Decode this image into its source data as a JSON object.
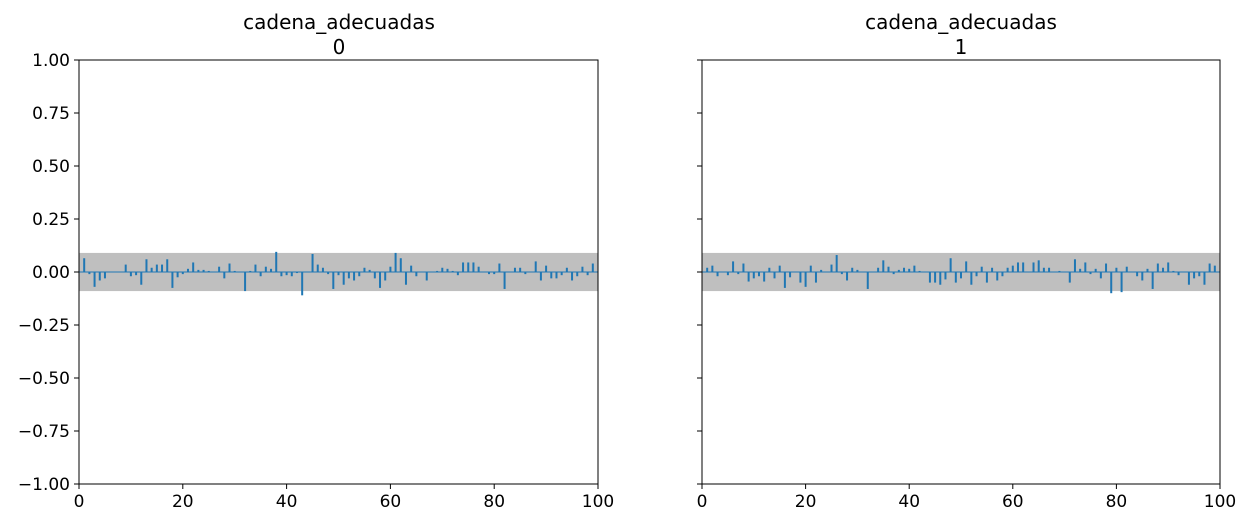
{
  "chart_data": [
    {
      "type": "bar",
      "title": "cadena_adecuadas",
      "subtitle": "0",
      "xlabel": "",
      "ylabel": "",
      "xlim": [
        0,
        100
      ],
      "ylim": [
        -1.0,
        1.0
      ],
      "xticks": [
        "0",
        "20",
        "40",
        "60",
        "80",
        "100"
      ],
      "yticks": [
        "1.00",
        "0.75",
        "0.50",
        "0.25",
        "0.00",
        "−0.25",
        "−0.50",
        "−0.75",
        "−1.00"
      ],
      "confidence_band": [
        -0.09,
        0.09
      ],
      "grid": false,
      "x": [
        1,
        2,
        3,
        4,
        5,
        6,
        7,
        8,
        9,
        10,
        11,
        12,
        13,
        14,
        15,
        16,
        17,
        18,
        19,
        20,
        21,
        22,
        23,
        24,
        25,
        26,
        27,
        28,
        29,
        30,
        31,
        32,
        33,
        34,
        35,
        36,
        37,
        38,
        39,
        40,
        41,
        42,
        43,
        44,
        45,
        46,
        47,
        48,
        49,
        50,
        51,
        52,
        53,
        54,
        55,
        56,
        57,
        58,
        59,
        60,
        61,
        62,
        63,
        64,
        65,
        66,
        67,
        68,
        69,
        70,
        71,
        72,
        73,
        74,
        75,
        76,
        77,
        78,
        79,
        80,
        81,
        82,
        83,
        84,
        85,
        86,
        87,
        88,
        89,
        90,
        91,
        92,
        93,
        94,
        95,
        96,
        97,
        98,
        99
      ],
      "values": [
        0.065,
        -0.01,
        -0.07,
        -0.04,
        -0.03,
        0.0,
        0.0,
        0.0,
        0.035,
        -0.02,
        -0.015,
        -0.06,
        0.06,
        0.02,
        0.035,
        0.035,
        0.06,
        -0.075,
        -0.025,
        -0.01,
        0.015,
        0.045,
        0.01,
        0.01,
        0.005,
        0.0,
        0.025,
        -0.03,
        0.04,
        0.005,
        0.0,
        -0.09,
        0.005,
        0.035,
        -0.02,
        0.025,
        0.015,
        0.095,
        -0.02,
        -0.015,
        -0.02,
        -0.005,
        -0.11,
        0.0,
        0.085,
        0.035,
        0.02,
        -0.01,
        -0.08,
        -0.015,
        -0.06,
        -0.03,
        -0.04,
        -0.02,
        0.02,
        0.01,
        -0.03,
        -0.075,
        -0.04,
        0.025,
        0.09,
        0.065,
        -0.06,
        0.03,
        -0.02,
        0.0,
        -0.04,
        0.0,
        0.005,
        0.02,
        0.015,
        0.005,
        -0.015,
        0.045,
        0.045,
        0.045,
        0.025,
        0.0,
        -0.01,
        -0.01,
        0.04,
        -0.08,
        0.0,
        0.02,
        0.02,
        -0.01,
        0.0,
        0.05,
        -0.04,
        0.03,
        -0.03,
        -0.03,
        -0.015,
        0.02,
        -0.04,
        -0.02,
        0.025,
        -0.015,
        0.04
      ]
    },
    {
      "type": "bar",
      "title": "cadena_adecuadas",
      "subtitle": "1",
      "xlabel": "",
      "ylabel": "",
      "xlim": [
        0,
        100
      ],
      "ylim": [
        -1.0,
        1.0
      ],
      "xticks": [
        "0",
        "20",
        "40",
        "60",
        "80",
        "100"
      ],
      "yticks": [],
      "confidence_band": [
        -0.09,
        0.09
      ],
      "grid": false,
      "x": [
        1,
        2,
        3,
        4,
        5,
        6,
        7,
        8,
        9,
        10,
        11,
        12,
        13,
        14,
        15,
        16,
        17,
        18,
        19,
        20,
        21,
        22,
        23,
        24,
        25,
        26,
        27,
        28,
        29,
        30,
        31,
        32,
        33,
        34,
        35,
        36,
        37,
        38,
        39,
        40,
        41,
        42,
        43,
        44,
        45,
        46,
        47,
        48,
        49,
        50,
        51,
        52,
        53,
        54,
        55,
        56,
        57,
        58,
        59,
        60,
        61,
        62,
        63,
        64,
        65,
        66,
        67,
        68,
        69,
        70,
        71,
        72,
        73,
        74,
        75,
        76,
        77,
        78,
        79,
        80,
        81,
        82,
        83,
        84,
        85,
        86,
        87,
        88,
        89,
        90,
        91,
        92,
        93,
        94,
        95,
        96,
        97,
        98,
        99
      ],
      "values": [
        0.02,
        0.03,
        -0.02,
        0.0,
        -0.015,
        0.05,
        -0.01,
        0.04,
        -0.045,
        -0.03,
        -0.02,
        -0.045,
        0.02,
        -0.03,
        0.03,
        -0.075,
        -0.025,
        0.0,
        -0.05,
        -0.07,
        0.03,
        -0.05,
        0.01,
        0.0,
        0.035,
        0.08,
        -0.01,
        -0.04,
        0.02,
        0.01,
        0.0,
        -0.08,
        0.0,
        0.02,
        0.055,
        0.025,
        -0.01,
        0.01,
        0.02,
        0.015,
        0.03,
        0.005,
        0.0,
        -0.05,
        -0.05,
        -0.06,
        -0.035,
        0.065,
        -0.05,
        -0.03,
        0.05,
        -0.06,
        -0.02,
        0.025,
        -0.05,
        0.02,
        -0.04,
        -0.02,
        0.02,
        0.03,
        0.045,
        0.045,
        0.0,
        0.045,
        0.055,
        0.02,
        0.02,
        0.0,
        0.005,
        0.0,
        -0.05,
        0.06,
        0.015,
        0.045,
        -0.01,
        0.015,
        -0.03,
        0.04,
        -0.1,
        0.02,
        -0.095,
        0.025,
        0.0,
        -0.02,
        -0.04,
        0.015,
        -0.08,
        0.04,
        0.02,
        0.045,
        0.005,
        -0.015,
        0.0,
        -0.06,
        -0.03,
        -0.02,
        -0.06,
        0.04,
        0.03
      ]
    }
  ],
  "colors": {
    "bar": "#1f77b4",
    "band": "#bfbfbf",
    "zero_line": "#1f77b4"
  }
}
